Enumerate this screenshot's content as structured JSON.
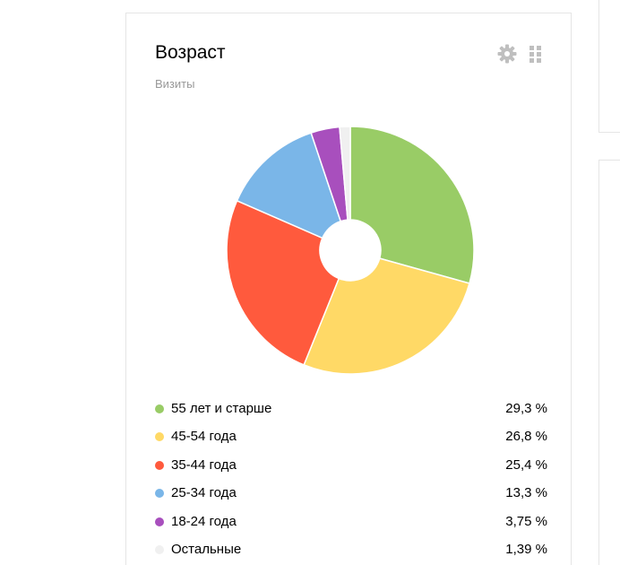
{
  "widget": {
    "title": "Возраст",
    "subtitle": "Визиты",
    "settings_icon": "gear-icon",
    "drag_icon": "drag-handle-icon",
    "icon_color": "#bfbfbf"
  },
  "chart_data": {
    "type": "pie",
    "donut": true,
    "legend_position": "bottom",
    "categories": [
      "55 лет и старше",
      "45-54 года",
      "35-44 года",
      "25-34 года",
      "18-24 года",
      "Остальные"
    ],
    "values": [
      29.3,
      26.8,
      25.4,
      13.3,
      3.75,
      1.39
    ],
    "value_labels": [
      "29,3 %",
      "26,8 %",
      "25,4 %",
      "13,3 %",
      "3,75 %",
      "1,39 %"
    ],
    "colors": [
      "#99cc66",
      "#ffd966",
      "#ff5a3d",
      "#7ab6e8",
      "#a84fbd",
      "#f0f0f0"
    ]
  }
}
